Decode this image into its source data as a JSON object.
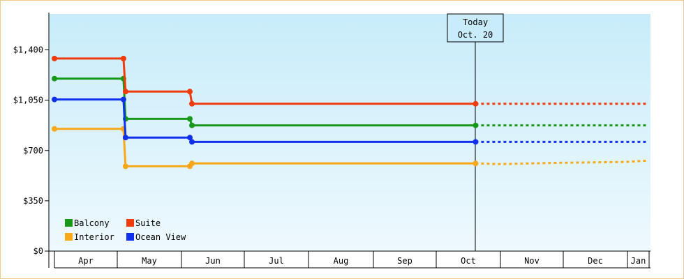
{
  "chart_data": {
    "type": "line",
    "step": true,
    "ylim": [
      0,
      1650
    ],
    "y_ticks": [
      0,
      350,
      700,
      1050,
      1400
    ],
    "y_tick_labels": [
      "$0",
      "$350",
      "$700",
      "$1,050",
      "$1,400"
    ],
    "months": [
      "Apr",
      "May",
      "Jun",
      "Jul",
      "Aug",
      "Sep",
      "Oct",
      "Nov",
      "Dec",
      "Jan"
    ],
    "today_marker": {
      "line1": "Today",
      "line2": "Oct. 20"
    },
    "legend_position": "bottom-left",
    "series": [
      {
        "name": "Balcony",
        "color": "#189818",
        "points": [
          [
            "Apr 1",
            1200
          ],
          [
            "May 4",
            1200
          ],
          [
            "May 5",
            920
          ],
          [
            "Jun 5",
            920
          ],
          [
            "Jun 6",
            875
          ],
          [
            "Oct 20",
            875
          ]
        ],
        "forecast": [
          [
            "Oct 20",
            875
          ],
          [
            "Jan 31",
            875
          ]
        ]
      },
      {
        "name": "Suite",
        "color": "#f03c0c",
        "points": [
          [
            "Apr 1",
            1340
          ],
          [
            "May 4",
            1340
          ],
          [
            "May 5",
            1110
          ],
          [
            "Jun 5",
            1110
          ],
          [
            "Jun 6",
            1025
          ],
          [
            "Oct 20",
            1025
          ]
        ],
        "forecast": [
          [
            "Oct 20",
            1025
          ],
          [
            "Jan 31",
            1025
          ]
        ]
      },
      {
        "name": "Interior",
        "color": "#f8a818",
        "points": [
          [
            "Apr 1",
            850
          ],
          [
            "May 4",
            850
          ],
          [
            "May 5",
            590
          ],
          [
            "Jun 5",
            590
          ],
          [
            "Jun 6",
            610
          ],
          [
            "Oct 20",
            610
          ]
        ],
        "forecast": [
          [
            "Oct 20",
            610
          ],
          [
            "Oct 31",
            605
          ],
          [
            "Nov 30",
            615
          ],
          [
            "Dec 31",
            620
          ],
          [
            "Jan 31",
            630
          ]
        ]
      },
      {
        "name": "Ocean View",
        "color": "#1030f0",
        "points": [
          [
            "Apr 1",
            1055
          ],
          [
            "May 4",
            1055
          ],
          [
            "May 5",
            790
          ],
          [
            "Jun 5",
            790
          ],
          [
            "Jun 6",
            760
          ],
          [
            "Oct 20",
            760
          ]
        ],
        "forecast": [
          [
            "Oct 20",
            760
          ],
          [
            "Jan 31",
            760
          ]
        ]
      }
    ]
  }
}
